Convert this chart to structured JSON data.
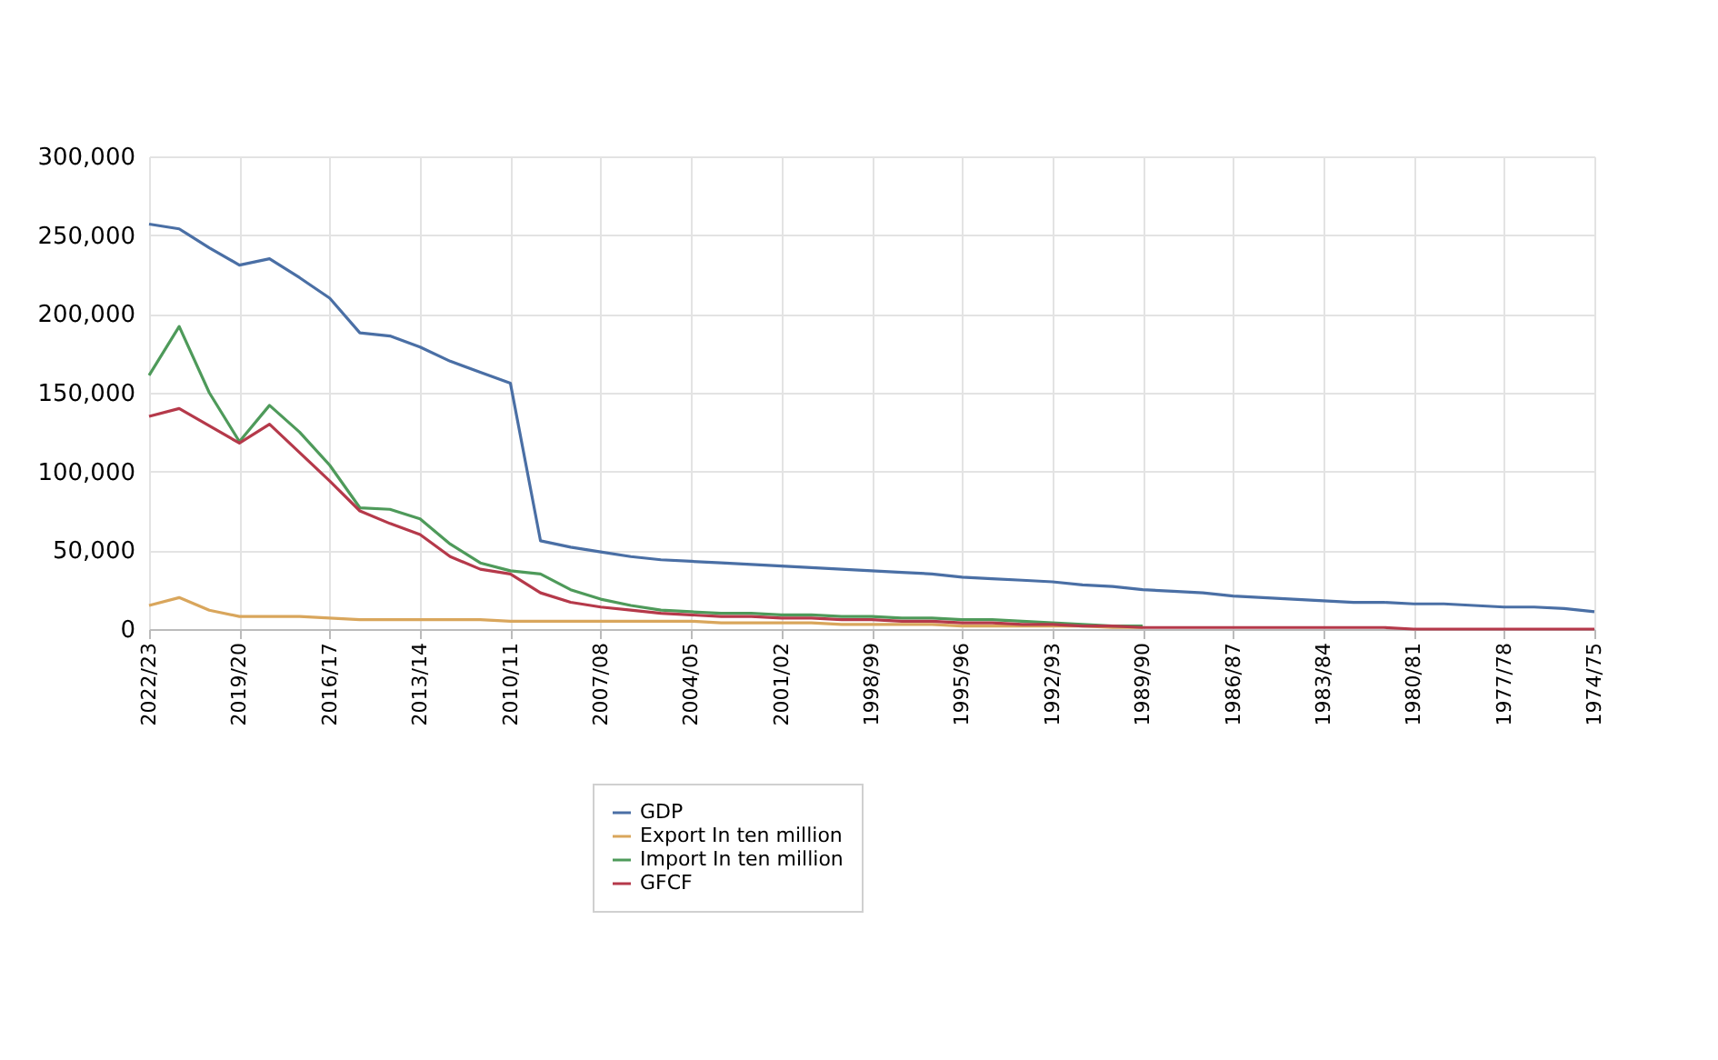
{
  "chart_data": {
    "type": "line",
    "categories": [
      "2022/23",
      null,
      null,
      "2019/20",
      null,
      null,
      "2016/17",
      null,
      null,
      "2013/14",
      null,
      null,
      "2010/11",
      null,
      null,
      "2007/08",
      null,
      null,
      "2004/05",
      null,
      null,
      "2001/02",
      null,
      null,
      "1998/99",
      null,
      null,
      "1995/96",
      null,
      null,
      "1992/93",
      null,
      null,
      "1989/90",
      null,
      null,
      "1986/87",
      null,
      null,
      "1983/84",
      null,
      null,
      "1980/81",
      null,
      null,
      "1977/78",
      null,
      null,
      "1974/75"
    ],
    "series": [
      {
        "name": "GDP",
        "color": "#4a6fa5",
        "values": [
          257000,
          254000,
          242000,
          231000,
          235000,
          223000,
          210000,
          188000,
          186000,
          179000,
          170000,
          163000,
          156000,
          56000,
          52000,
          49000,
          46000,
          44000,
          43000,
          42000,
          41000,
          40000,
          39000,
          38000,
          37000,
          36000,
          35000,
          33000,
          32000,
          31000,
          30000,
          28000,
          27000,
          25000,
          24000,
          23000,
          21000,
          20000,
          19000,
          18000,
          17000,
          17000,
          16000,
          16000,
          15000,
          14000,
          14000,
          13000,
          11000
        ]
      },
      {
        "name": "Export In ten million",
        "color": "#d9a65c",
        "values": [
          15000,
          20000,
          12000,
          8000,
          8000,
          8000,
          7000,
          6000,
          6000,
          6000,
          6000,
          6000,
          5000,
          5000,
          5000,
          5000,
          5000,
          5000,
          5000,
          4000,
          4000,
          4000,
          4000,
          3000,
          3000,
          3000,
          3000,
          2000,
          2000,
          2000,
          2000,
          2000,
          1000,
          1000,
          null,
          null,
          null,
          null,
          null,
          null,
          null,
          null,
          null,
          null,
          null,
          null,
          null,
          null,
          null
        ]
      },
      {
        "name": "Import In ten million",
        "color": "#4e9a5a",
        "values": [
          161000,
          192000,
          150000,
          119000,
          142000,
          125000,
          104000,
          77000,
          76000,
          70000,
          54000,
          42000,
          37000,
          35000,
          25000,
          19000,
          15000,
          12000,
          11000,
          10000,
          10000,
          9000,
          9000,
          8000,
          8000,
          7000,
          7000,
          6000,
          6000,
          5000,
          4000,
          3000,
          2000,
          2000,
          null,
          null,
          null,
          null,
          null,
          null,
          null,
          null,
          null,
          null,
          null,
          null,
          null,
          null,
          null
        ]
      },
      {
        "name": "GFCF",
        "color": "#b5394a",
        "values": [
          135000,
          140000,
          129000,
          118000,
          130000,
          112000,
          94000,
          75000,
          67000,
          60000,
          46000,
          38000,
          35000,
          23000,
          17000,
          14000,
          12000,
          10000,
          9000,
          8000,
          8000,
          7000,
          7000,
          6000,
          6000,
          5000,
          5000,
          4000,
          4000,
          3000,
          3000,
          2000,
          2000,
          1000,
          1000,
          1000,
          1000,
          1000,
          1000,
          1000,
          1000,
          1000,
          0,
          0,
          0,
          0,
          0,
          0,
          0
        ]
      }
    ],
    "ylim": [
      0,
      300000
    ],
    "yticks": [
      {
        "value": 0,
        "label": "0"
      },
      {
        "value": 50000,
        "label": "50,000"
      },
      {
        "value": 100000,
        "label": "100,000"
      },
      {
        "value": 150000,
        "label": "150,000"
      },
      {
        "value": 200000,
        "label": "200,000"
      },
      {
        "value": 250000,
        "label": "250,000"
      },
      {
        "value": 300000,
        "label": "300,000"
      }
    ],
    "grid": true,
    "legend": "bottom",
    "marker": "none",
    "line_style": "solid"
  }
}
